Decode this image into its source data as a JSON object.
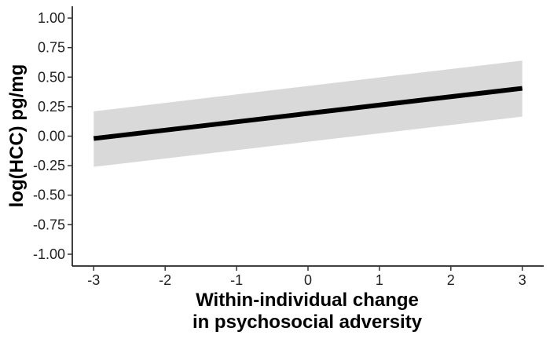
{
  "chart_data": {
    "type": "line",
    "title": "",
    "xlabel_lines": [
      "Within-individual change",
      "in psychosocial adversity"
    ],
    "ylabel": "log(HCC) pg/mg",
    "xlim": [
      -3.3,
      3.3
    ],
    "ylim": [
      -1.1,
      1.1
    ],
    "x_ticks": [
      -3,
      -2,
      -1,
      0,
      1,
      2,
      3
    ],
    "x_tick_labels": [
      "-3",
      "-2",
      "-1",
      "0",
      "1",
      "2",
      "3"
    ],
    "y_ticks": [
      1.0,
      0.75,
      0.5,
      0.25,
      0.0,
      -0.25,
      -0.5,
      -0.75,
      -1.0
    ],
    "y_tick_labels": [
      "1.00",
      "0.75",
      "0.50",
      "0.25",
      "0.00",
      "-0.25",
      "-0.50",
      "-0.75",
      "-1.00"
    ],
    "grid": false,
    "legend": "none",
    "series": [
      {
        "x": [
          -3,
          3
        ],
        "y": [
          -0.02,
          0.405
        ],
        "ci_lower": [
          -0.26,
          0.165
        ],
        "ci_upper": [
          0.21,
          0.64
        ],
        "color": "#000000",
        "band_color": "#d9d9d9"
      }
    ]
  }
}
